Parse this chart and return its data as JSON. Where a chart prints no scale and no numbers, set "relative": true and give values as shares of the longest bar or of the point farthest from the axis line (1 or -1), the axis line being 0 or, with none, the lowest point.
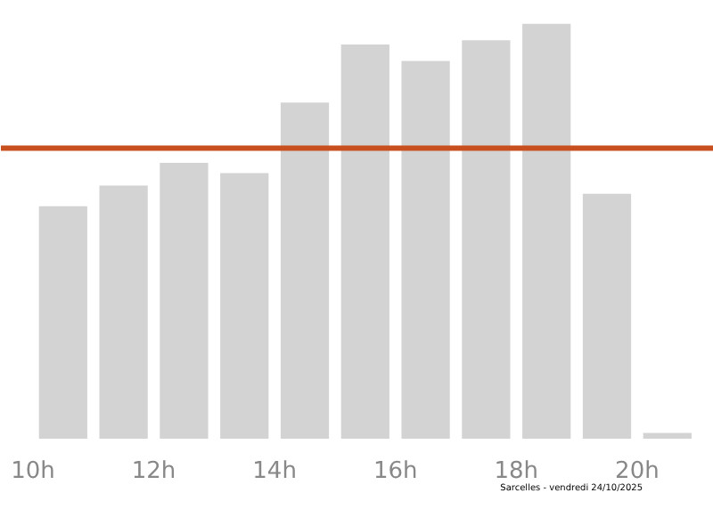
{
  "chart_data": {
    "type": "bar",
    "relative": true,
    "x": [
      10.5,
      11.5,
      12.5,
      13.5,
      14.5,
      15.5,
      16.5,
      17.5,
      18.5,
      19.5,
      20.5
    ],
    "values": [
      0.56,
      0.61,
      0.665,
      0.64,
      0.81,
      0.95,
      0.91,
      0.96,
      1,
      0.59,
      0.014
    ],
    "color": "#d3d3d3",
    "xlim": [
      9.47,
      21.27
    ],
    "xticks": [
      {
        "value": 10,
        "label": "10h"
      },
      {
        "value": 12,
        "label": "12h"
      },
      {
        "value": 14,
        "label": "14h"
      },
      {
        "value": 16,
        "label": "16h"
      },
      {
        "value": 18,
        "label": "18h"
      },
      {
        "value": 20,
        "label": "20h"
      }
    ],
    "ref_lines": [
      {
        "axis": "y",
        "value": 0.7,
        "label": null,
        "color": "#c8501e"
      }
    ],
    "annotations": [
      "Sarcelles - vendredi 24/10/2025"
    ],
    "grid": false
  }
}
